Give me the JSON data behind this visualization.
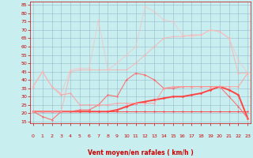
{
  "x": [
    0,
    1,
    2,
    3,
    4,
    5,
    6,
    7,
    8,
    9,
    10,
    11,
    12,
    13,
    14,
    15,
    16,
    17,
    18,
    19,
    20,
    21,
    22,
    23
  ],
  "series": [
    {
      "name": "flat_bottom",
      "color": "#ff4444",
      "alpha": 1.0,
      "linewidth": 0.7,
      "marker": "D",
      "markersize": 1.5,
      "values": [
        21,
        21,
        21,
        21,
        21,
        21,
        21,
        21,
        21,
        21,
        21,
        21,
        21,
        21,
        21,
        21,
        21,
        21,
        21,
        21,
        21,
        21,
        21,
        21
      ]
    },
    {
      "name": "gradual_rise",
      "color": "#ff4444",
      "alpha": 1.0,
      "linewidth": 1.4,
      "marker": "D",
      "markersize": 1.8,
      "values": [
        21,
        21,
        21,
        21,
        21,
        21,
        21,
        21,
        21,
        22,
        24,
        26,
        27,
        28,
        29,
        30,
        30,
        31,
        32,
        34,
        36,
        34,
        31,
        17
      ]
    },
    {
      "name": "mid_wavy",
      "color": "#ff6666",
      "alpha": 0.9,
      "linewidth": 0.8,
      "marker": "D",
      "markersize": 1.5,
      "values": [
        21,
        18,
        16,
        21,
        21,
        22,
        22,
        25,
        31,
        30,
        40,
        44,
        43,
        40,
        35,
        35,
        36,
        36,
        36,
        36,
        36,
        30,
        24,
        17
      ]
    },
    {
      "name": "upper_plateau",
      "color": "#ff9999",
      "alpha": 0.8,
      "linewidth": 0.8,
      "marker": "D",
      "markersize": 1.5,
      "values": [
        36,
        45,
        36,
        31,
        32,
        25,
        25,
        25,
        25,
        26,
        26,
        26,
        26,
        26,
        35,
        36,
        36,
        36,
        36,
        36,
        36,
        36,
        36,
        44
      ]
    },
    {
      "name": "upper_rise1",
      "color": "#ffaaaa",
      "alpha": 0.7,
      "linewidth": 0.8,
      "marker": "D",
      "markersize": 1.5,
      "values": [
        21,
        21,
        21,
        21,
        45,
        46,
        46,
        46,
        46,
        46,
        46,
        50,
        55,
        60,
        65,
        66,
        66,
        67,
        67,
        70,
        69,
        65,
        44,
        44
      ]
    },
    {
      "name": "upper_rise2",
      "color": "#ffbbbb",
      "alpha": 0.6,
      "linewidth": 0.8,
      "marker": "D",
      "markersize": 1.5,
      "values": [
        36,
        45,
        36,
        32,
        46,
        47,
        47,
        76,
        46,
        50,
        55,
        60,
        84,
        81,
        76,
        75,
        67,
        66,
        67,
        70,
        69,
        65,
        52,
        44
      ]
    }
  ],
  "xlim": [
    -0.3,
    23.3
  ],
  "ylim": [
    14,
    87
  ],
  "yticks": [
    15,
    20,
    25,
    30,
    35,
    40,
    45,
    50,
    55,
    60,
    65,
    70,
    75,
    80,
    85
  ],
  "xticks": [
    0,
    1,
    2,
    3,
    4,
    5,
    6,
    7,
    8,
    9,
    10,
    11,
    12,
    13,
    14,
    15,
    16,
    17,
    18,
    19,
    20,
    21,
    22,
    23
  ],
  "xlabel": "Vent moyen/en rafales ( km/h )",
  "bg_color": "#c8eef0",
  "grid_color": "#99bbcc",
  "tick_color": "#cc0000",
  "label_color": "#cc0000",
  "spine_color": "#cc0000"
}
